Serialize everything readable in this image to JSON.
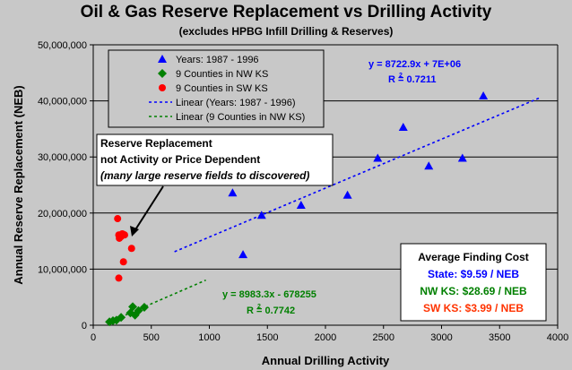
{
  "chart_data": {
    "type": "scatter",
    "title": "Oil & Gas Reserve Replacement vs Drilling Activity",
    "subtitle": "(excludes HPBG Infill Drilling & Reserves)",
    "xlabel": "Annual Drilling Activity",
    "ylabel": "Annual Reserve Replacement (NEB)",
    "xlim": [
      0,
      4000
    ],
    "ylim": [
      0,
      50000000
    ],
    "x_ticks": [
      "0",
      "500",
      "1000",
      "1500",
      "2000",
      "2500",
      "3000",
      "3500",
      "4000"
    ],
    "y_ticks": [
      "0",
      "10,000,000",
      "20,000,000",
      "30,000,000",
      "40,000,000",
      "50,000,000"
    ],
    "grid": "horizontal",
    "series": [
      {
        "name": "Years: 1987 - 1996",
        "marker": "triangle",
        "color": "#0000ff",
        "points": [
          [
            1200,
            23600000
          ],
          [
            1290,
            12600000
          ],
          [
            1450,
            19600000
          ],
          [
            1790,
            21400000
          ],
          [
            2190,
            23200000
          ],
          [
            2450,
            29800000
          ],
          [
            2670,
            35300000
          ],
          [
            2890,
            28400000
          ],
          [
            3180,
            29800000
          ],
          [
            3360,
            40900000
          ]
        ]
      },
      {
        "name": "9 Counties in NW KS",
        "marker": "diamond",
        "color": "#008000",
        "points": [
          [
            140,
            600000
          ],
          [
            170,
            800000
          ],
          [
            200,
            900000
          ],
          [
            240,
            1400000
          ],
          [
            320,
            2200000
          ],
          [
            340,
            3300000
          ],
          [
            360,
            1800000
          ],
          [
            390,
            2600000
          ],
          [
            440,
            3200000
          ]
        ]
      },
      {
        "name": "9 Counties in SW KS",
        "marker": "circle",
        "color": "#ff0000",
        "points": [
          [
            210,
            19000000
          ],
          [
            220,
            16100000
          ],
          [
            225,
            15500000
          ],
          [
            235,
            16000000
          ],
          [
            240,
            15800000
          ],
          [
            250,
            16300000
          ],
          [
            260,
            16200000
          ],
          [
            270,
            16100000
          ],
          [
            220,
            8400000
          ],
          [
            260,
            11300000
          ],
          [
            330,
            13700000
          ]
        ]
      }
    ],
    "trendlines": [
      {
        "name": "Linear (Years: 1987 - 1996)",
        "color": "#0000ff",
        "slope": 8722.9,
        "intercept": 7000000,
        "x_range": [
          700,
          3850
        ]
      },
      {
        "name": "Linear (9 Counties in NW KS)",
        "color": "#008000",
        "slope": 8983.3,
        "intercept": -678255,
        "x_range": [
          150,
          970
        ]
      }
    ],
    "equations": {
      "years": {
        "eq": "y = 8722.9x + 7E+06",
        "r2": "R = 0.7211",
        "color": "#0000ff"
      },
      "nw": {
        "eq": "y = 8983.3x - 678255",
        "r2": "R = 0.7742",
        "color": "#008000"
      }
    },
    "legend": {
      "placement": "top-left",
      "entries": [
        "Years: 1987 - 1996",
        "9 Counties in NW KS",
        "9 Counties in SW KS",
        "Linear (Years: 1987 - 1996)",
        "Linear (9 Counties in NW KS)"
      ]
    },
    "annotation": {
      "lines": [
        "Reserve Replacement",
        "not Activity or Price Dependent",
        "(many large reserve fields to discovered)"
      ]
    },
    "finding_cost": {
      "title": "Average Finding Cost",
      "rows": [
        {
          "text": "State: $9.59 / NEB",
          "color": "#0000ff"
        },
        {
          "text": "NW KS: $28.69 / NEB",
          "color": "#008000"
        },
        {
          "text": "SW KS: $3.99 / NEB",
          "color": "#ff3300"
        }
      ]
    }
  }
}
